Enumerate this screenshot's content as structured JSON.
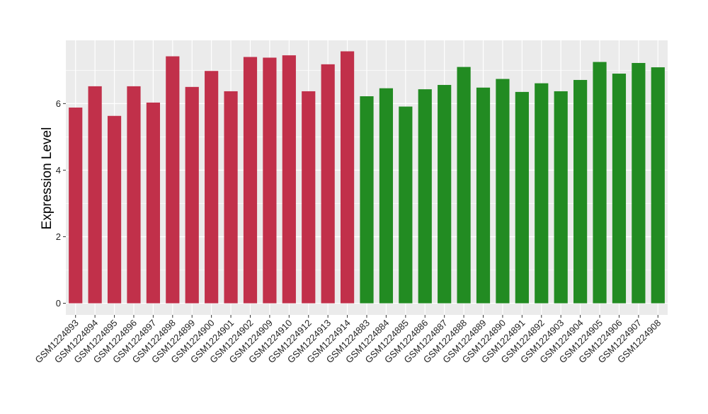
{
  "chart_data": {
    "type": "bar",
    "title": "",
    "xlabel": "",
    "ylabel": "Expression Level",
    "ylim": [
      -0.35,
      7.9
    ],
    "yticks": [
      0,
      2,
      4,
      6
    ],
    "grid": true,
    "legend": "none",
    "background_color": "#EBEBEB",
    "grid_color": "#FFFFFF",
    "categories": [
      "GSM1224893",
      "GSM1224894",
      "GSM1224895",
      "GSM1224896",
      "GSM1224897",
      "GSM1224898",
      "GSM1224899",
      "GSM1224900",
      "GSM1224901",
      "GSM1224902",
      "GSM1224909",
      "GSM1224910",
      "GSM1224912",
      "GSM1224913",
      "GSM1224914",
      "GSM1224883",
      "GSM1224884",
      "GSM1224885",
      "GSM1224886",
      "GSM1224887",
      "GSM1224888",
      "GSM1224889",
      "GSM1224890",
      "GSM1224891",
      "GSM1224892",
      "GSM1224903",
      "GSM1224904",
      "GSM1224905",
      "GSM1224906",
      "GSM1224907",
      "GSM1224908"
    ],
    "values": [
      5.88,
      6.52,
      5.63,
      6.52,
      6.03,
      7.42,
      6.5,
      6.98,
      6.37,
      7.4,
      7.38,
      7.45,
      6.37,
      7.18,
      7.57,
      6.22,
      6.46,
      5.91,
      6.43,
      6.56,
      7.1,
      6.48,
      6.74,
      6.35,
      6.61,
      6.37,
      6.71,
      7.25,
      6.9,
      7.22,
      7.09
    ],
    "group_colors": [
      "#C1304A",
      "#228B22"
    ],
    "bar_group": [
      0,
      0,
      0,
      0,
      0,
      0,
      0,
      0,
      0,
      0,
      0,
      0,
      0,
      0,
      0,
      1,
      1,
      1,
      1,
      1,
      1,
      1,
      1,
      1,
      1,
      1,
      1,
      1,
      1,
      1,
      1
    ]
  }
}
